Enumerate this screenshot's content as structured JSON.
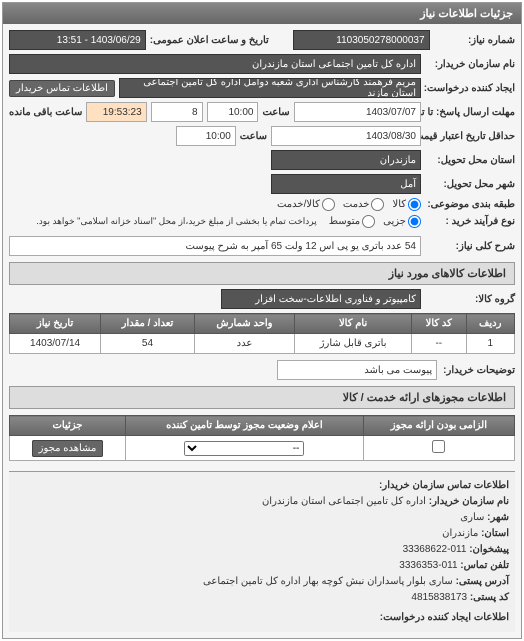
{
  "panel_title": "جزئیات اطلاعات نیاز",
  "fields": {
    "request_no_label": "شماره نیاز:",
    "request_no": "1103050278000037",
    "public_date_label": "تاریخ و ساعت اعلان عمومی:",
    "public_date": "1403/06/29 - 13:51",
    "buyer_name_label": "نام سازمان خریدار:",
    "buyer_name": "اداره کل تامین اجتماعی استان مازندران",
    "creator_label": "ایجاد کننده درخواست:",
    "creator": "مریم فرهمند کارشناس اداری شعبه دوآمل اداره کل تامین اجتماعی استان مازند",
    "contact_link": "اطلاعات تماس خریدار",
    "deadline_label": "مهلت ارسال پاسخ: تا تاریخ:",
    "deadline_date": "1403/07/07",
    "deadline_time_label": "ساعت",
    "deadline_time": "10:00",
    "remaining_days": "8",
    "remaining_time": "19:53:23",
    "remaining_label": "ساعت باقی مانده",
    "validity_label": "حداقل تاریخ اعتبار قیمت: تا تاریخ:",
    "validity_date": "1403/08/30",
    "validity_time": "10:00",
    "province_label": "استان محل تحویل:",
    "province": "مازندران",
    "city_label": "شهر محل تحویل:",
    "city": "آمل",
    "package_label": "طبقه بندی موضوعی:",
    "package_opts": {
      "kala": "کالا",
      "khadmat": "خدمت",
      "both": "کالا/خدمت"
    },
    "purchase_label": "نوع فرآیند خرید :",
    "purchase_opts": {
      "jozi": "جزیی",
      "motavaset": "متوسط"
    },
    "purchase_note": "پرداخت تمام یا بخشی از مبلغ خرید،از محل \"اسناد خزانه اسلامی\" خواهد بود.",
    "subject_label": "شرح کلی نیاز:",
    "subject": "54 عدد باتری یو پی اس 12 ولت 65 آمپر به شرح پیوست",
    "goods_section": "اطلاعات کالاهای مورد نیاز",
    "group_label": "گروه کالا:",
    "group": "کامپیوتر و فناوری اطلاعات-سخت افزار",
    "note_label": "توضیحات خریدار:",
    "note": "پیوست می باشد",
    "permit_section": "اطلاعات مجوزهای ارائه خدمت / کالا"
  },
  "goods_table": {
    "headers": [
      "ردیف",
      "کد کالا",
      "نام کالا",
      "واحد شمارش",
      "تعداد / مقدار",
      "تاریخ نیاز"
    ],
    "rows": [
      [
        "1",
        "--",
        "باتری قابل شارژ",
        "عدد",
        "54",
        "1403/07/14"
      ]
    ]
  },
  "permit_table": {
    "headers": [
      "الزامی بودن ارائه مجوز",
      "اعلام وضعیت مجوز توسط تامین کننده",
      "جزئیات"
    ],
    "view_btn": "مشاهده مجوز",
    "dash": "--"
  },
  "footer": {
    "title": "اطلاعات تماس سازمان خریدار:",
    "org_label": "نام سازمان خریدار:",
    "org": "اداره کل تامین اجتماعی استان مازندران",
    "city_label": "شهر:",
    "city": "ساری",
    "province_label": "استان:",
    "province": "مازندران",
    "phone_label": "پیشخوان:",
    "phone": "011-33368622",
    "fax_label": "تلفن تماس:",
    "fax": "011-3336353",
    "address_label": "آدرس پستی:",
    "address": "ساری بلوار پاسداران نبش کوچه بهار اداره کل تامین اجتماعی",
    "postal_label": "کد پستی:",
    "postal": "4815838173",
    "req_creator_title": "اطلاعات ایجاد کننده درخواست:"
  }
}
